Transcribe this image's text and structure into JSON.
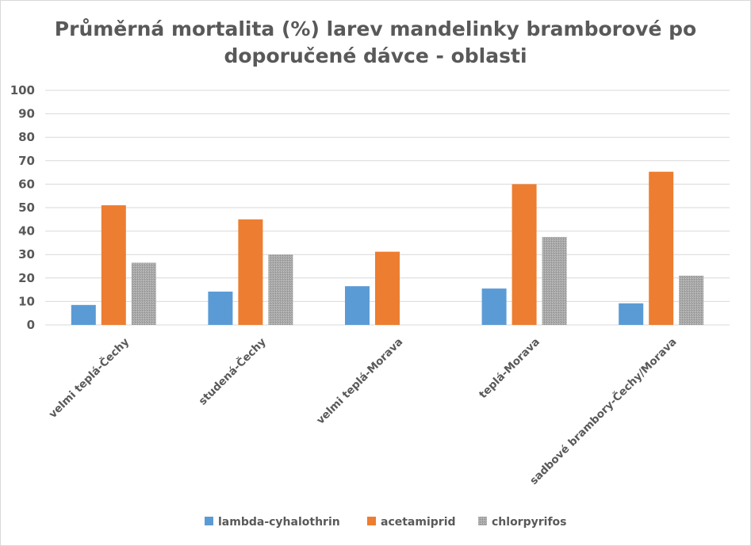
{
  "chart_data": {
    "type": "bar",
    "title_lines": [
      "Průměrná mortalita (%) larev mandelinky bramborové po",
      "doporučené dávce - oblasti"
    ],
    "categories": [
      "velmi teplá-Čechy",
      "studená-Čechy",
      "velmi teplá-Morava",
      "teplá-Morava",
      "sadbové brambory-Čechy/Morava"
    ],
    "series": [
      {
        "name": "lambda-cyhalothrin",
        "color": "#5b9bd5",
        "values": [
          8.5,
          14.2,
          16.5,
          15.5,
          9.2
        ]
      },
      {
        "name": "acetamiprid",
        "color": "#ed7d31",
        "values": [
          51,
          45,
          31.2,
          60,
          65.3
        ]
      },
      {
        "name": "chlorpyrifos",
        "color": "#a5a5a5",
        "values": [
          26.5,
          30,
          null,
          37.5,
          21
        ]
      }
    ],
    "ylim": [
      0,
      100
    ],
    "yticks": [
      "0",
      "10",
      "20",
      "30",
      "40",
      "50",
      "60",
      "70",
      "80",
      "90",
      "100"
    ],
    "grid": true,
    "legend": "bottom"
  }
}
